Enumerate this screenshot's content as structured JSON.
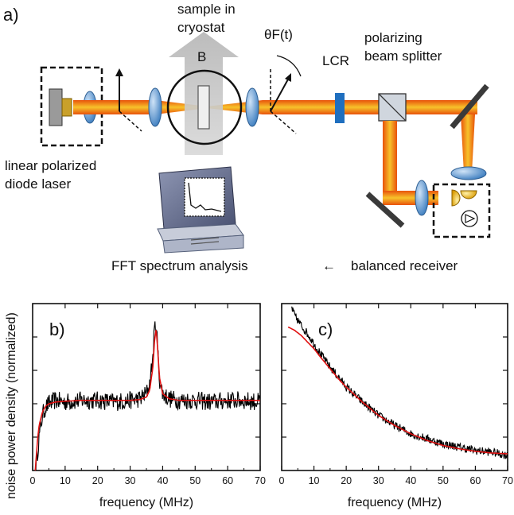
{
  "setup": {
    "panel_label": "a)",
    "sample_line1": "sample in",
    "sample_line2": "cryostat",
    "field_label": "B",
    "faraday_label": "θF(t)",
    "lcr_label": "LCR",
    "pbs_line1": "polarizing",
    "pbs_line2": "beam splitter",
    "laser_line1": "linear polarized",
    "laser_line2": "diode laser",
    "fft_label": "FFT spectrum analysis",
    "receiver_label": "balanced receiver",
    "arrow_symbol": "←",
    "colors": {
      "beam_outer": "#e8520a",
      "beam_inner": "#f7c22b",
      "lens": "#5b9bd5",
      "lcr": "#1f6fbf",
      "mirror": "#3a3a3a",
      "field_arrow": "#c8c8c8"
    }
  },
  "ylabel": "noise power density (normalized)",
  "chart_data": [
    {
      "type": "line",
      "panel_label": "b)",
      "xlabel": "frequency (MHz)",
      "xlim": [
        0,
        70
      ],
      "xticks": [
        0,
        10,
        20,
        30,
        40,
        50,
        60,
        70
      ],
      "ylim": [
        0,
        1
      ],
      "yticks_labeled": false,
      "series": [
        {
          "role": "measured",
          "color": "#000000",
          "x": [
            1,
            2,
            3,
            4,
            5,
            7,
            10,
            15,
            20,
            25,
            30,
            33,
            35,
            36,
            37,
            37.5,
            38,
            38.5,
            39,
            40,
            42,
            45,
            50,
            55,
            60,
            65,
            70
          ],
          "y": [
            0.02,
            0.2,
            0.33,
            0.38,
            0.4,
            0.42,
            0.41,
            0.42,
            0.42,
            0.41,
            0.42,
            0.43,
            0.46,
            0.52,
            0.68,
            0.85,
            0.88,
            0.72,
            0.55,
            0.46,
            0.43,
            0.42,
            0.42,
            0.41,
            0.42,
            0.42,
            0.41
          ]
        },
        {
          "role": "fit",
          "color": "#e01010",
          "x": [
            0.8,
            1.5,
            2,
            3,
            4,
            5,
            7,
            10,
            15,
            20,
            25,
            30,
            33,
            35,
            36,
            37,
            37.5,
            38,
            38.5,
            39,
            40,
            42,
            45,
            50,
            55,
            60,
            65,
            70
          ],
          "y": [
            0.0,
            0.18,
            0.27,
            0.35,
            0.385,
            0.4,
            0.41,
            0.415,
            0.42,
            0.42,
            0.42,
            0.42,
            0.425,
            0.44,
            0.48,
            0.62,
            0.78,
            0.85,
            0.72,
            0.56,
            0.46,
            0.43,
            0.42,
            0.42,
            0.42,
            0.42,
            0.42,
            0.42
          ]
        }
      ]
    },
    {
      "type": "line",
      "panel_label": "c)",
      "xlabel": "frequency (MHz)",
      "xlim": [
        0,
        70
      ],
      "xticks": [
        0,
        10,
        20,
        30,
        40,
        50,
        60,
        70
      ],
      "ylim": [
        0,
        1
      ],
      "yticks_labeled": false,
      "series": [
        {
          "role": "measured",
          "color": "#000000",
          "x": [
            3,
            4,
            6,
            8,
            10,
            12,
            15,
            18,
            20,
            25,
            30,
            35,
            40,
            45,
            50,
            55,
            60,
            65,
            70
          ],
          "y": [
            0.98,
            0.93,
            0.87,
            0.82,
            0.76,
            0.7,
            0.62,
            0.55,
            0.5,
            0.41,
            0.33,
            0.27,
            0.22,
            0.19,
            0.16,
            0.14,
            0.12,
            0.11,
            0.09
          ]
        },
        {
          "role": "fit",
          "color": "#e01010",
          "x": [
            2,
            4,
            6,
            8,
            10,
            12,
            15,
            18,
            20,
            25,
            30,
            35,
            40,
            45,
            50,
            55,
            60,
            65,
            70
          ],
          "y": [
            0.86,
            0.84,
            0.81,
            0.77,
            0.73,
            0.68,
            0.61,
            0.54,
            0.5,
            0.41,
            0.33,
            0.27,
            0.22,
            0.18,
            0.15,
            0.13,
            0.115,
            0.105,
            0.1
          ]
        }
      ]
    }
  ]
}
